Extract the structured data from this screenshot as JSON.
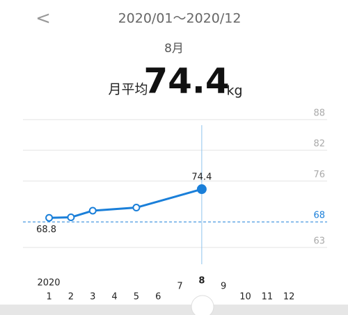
{
  "header": {
    "back": "<",
    "range": "2020/01～2020/12",
    "month": "8月",
    "avg_label": "月平均",
    "avg_value": "74.4",
    "unit": "kg"
  },
  "chart_data": {
    "type": "line",
    "year_label": "2020",
    "x": [
      1,
      2,
      3,
      5,
      8
    ],
    "series": [
      {
        "color": "#1a7fd9",
        "values": [
          68.8,
          68.9,
          70.2,
          70.8,
          74.4
        ]
      }
    ],
    "xlim": [
      -0.2,
      13.75
    ],
    "xticks": [
      1,
      2,
      3,
      4,
      5,
      6,
      7,
      8,
      9,
      10,
      11,
      12
    ],
    "ylim": [
      60,
      88
    ],
    "yticks": [
      88,
      82,
      76,
      63
    ],
    "target": 68,
    "target_color": "#1a7fd9",
    "selected_x": 8,
    "grid": true
  }
}
